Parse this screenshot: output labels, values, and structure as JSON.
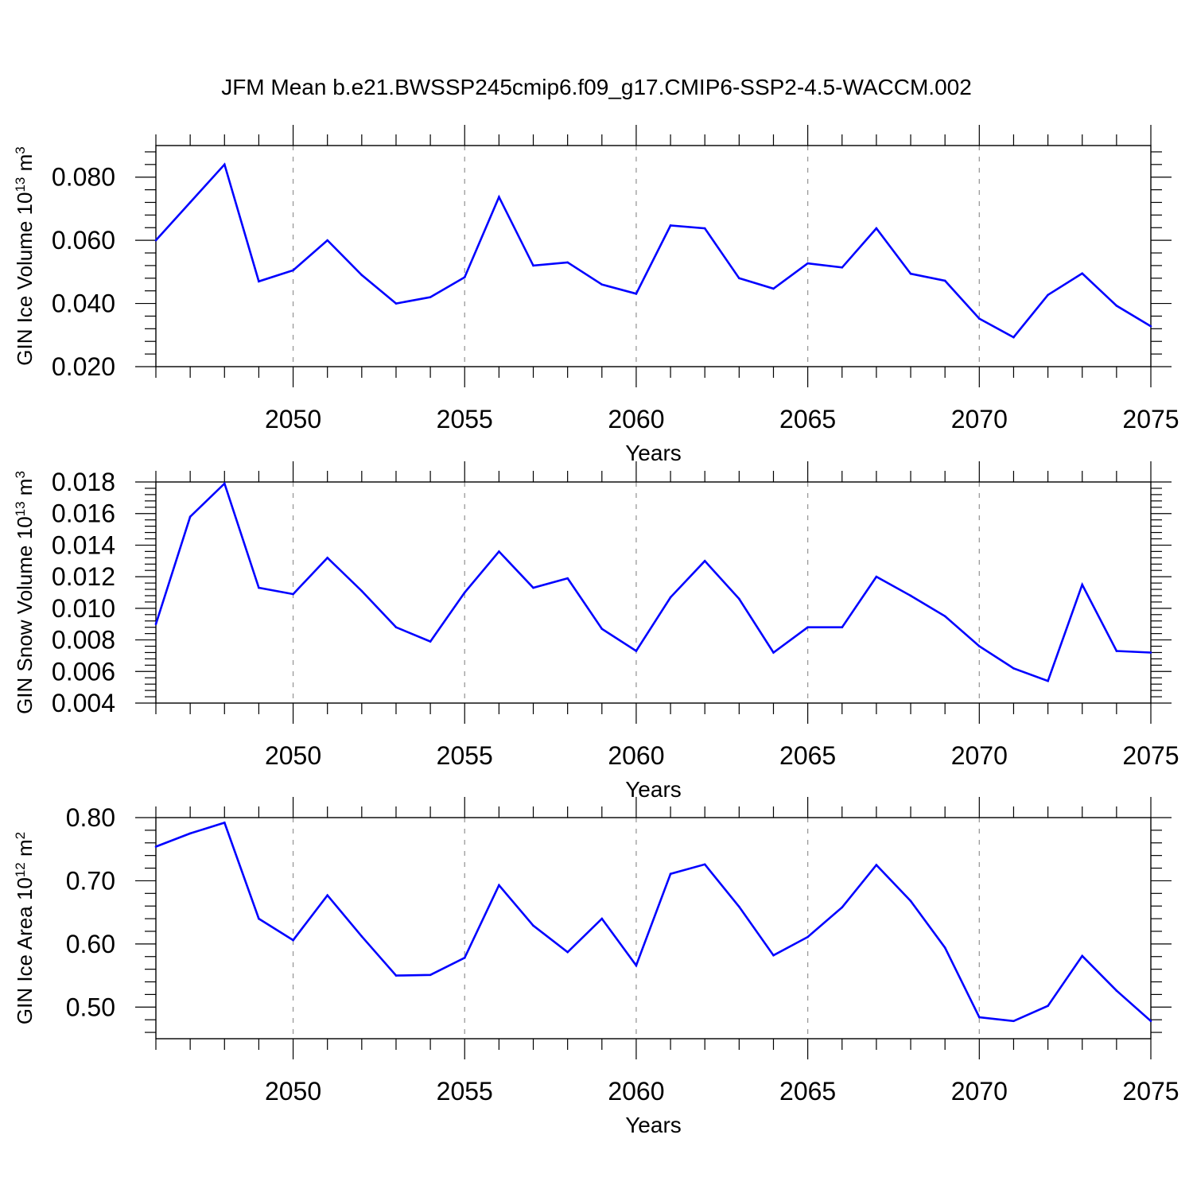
{
  "title": "JFM Mean b.e21.BWSSP245cmip6.f09_g17.CMIP6-SSP2-4.5-WACCM.002",
  "line_color": "#0000ff",
  "chart_data": [
    {
      "type": "line",
      "xlabel": "Years",
      "ylabel_main": "GIN Ice Volume 10",
      "ylabel_sup": "13",
      "ylabel_unit": " m",
      "ylabel_unit_sup": "3",
      "xlim": [
        2046,
        2075
      ],
      "ylim": [
        0.02,
        0.09
      ],
      "xticks": [
        "2050",
        "2055",
        "2060",
        "2065",
        "2070",
        "2075"
      ],
      "yticks": [
        "0.020",
        "0.040",
        "0.060",
        "0.080"
      ],
      "x_grid": "dashed at major ticks",
      "x": [
        2046,
        2047,
        2048,
        2049,
        2050,
        2051,
        2052,
        2053,
        2054,
        2055,
        2056,
        2057,
        2058,
        2059,
        2060,
        2061,
        2062,
        2063,
        2064,
        2065,
        2066,
        2067,
        2068,
        2069,
        2070,
        2071,
        2072,
        2073,
        2074,
        2075
      ],
      "values": [
        0.06,
        0.072,
        0.084,
        0.047,
        0.0505,
        0.06,
        0.049,
        0.04,
        0.042,
        0.0483,
        0.0737,
        0.052,
        0.053,
        0.046,
        0.0431,
        0.0647,
        0.0638,
        0.048,
        0.0447,
        0.0527,
        0.0514,
        0.0638,
        0.0494,
        0.0472,
        0.0352,
        0.0293,
        0.0427,
        0.0495,
        0.0393,
        0.0328
      ]
    },
    {
      "type": "line",
      "xlabel": "Years",
      "ylabel_main": "GIN Snow Volume 10",
      "ylabel_sup": "13",
      "ylabel_unit": " m",
      "ylabel_unit_sup": "3",
      "xlim": [
        2046,
        2075
      ],
      "ylim": [
        0.004,
        0.018
      ],
      "xticks": [
        "2050",
        "2055",
        "2060",
        "2065",
        "2070",
        "2075"
      ],
      "yticks": [
        "0.004",
        "0.006",
        "0.008",
        "0.010",
        "0.012",
        "0.014",
        "0.016",
        "0.018"
      ],
      "x_grid": "dashed at major ticks",
      "x": [
        2046,
        2047,
        2048,
        2049,
        2050,
        2051,
        2052,
        2053,
        2054,
        2055,
        2056,
        2057,
        2058,
        2059,
        2060,
        2061,
        2062,
        2063,
        2064,
        2065,
        2066,
        2067,
        2068,
        2069,
        2070,
        2071,
        2072,
        2073,
        2074,
        2075
      ],
      "values": [
        0.009,
        0.0158,
        0.0179,
        0.0113,
        0.0109,
        0.0132,
        0.0111,
        0.0088,
        0.0079,
        0.011,
        0.0136,
        0.0113,
        0.0119,
        0.0087,
        0.0073,
        0.0107,
        0.013,
        0.0106,
        0.0072,
        0.0088,
        0.0088,
        0.012,
        0.0108,
        0.0095,
        0.0076,
        0.0062,
        0.0054,
        0.0115,
        0.0073,
        0.0072
      ]
    },
    {
      "type": "line",
      "xlabel": "Years",
      "ylabel_main": "GIN Ice Area 10",
      "ylabel_sup": "12",
      "ylabel_unit": " m",
      "ylabel_unit_sup": "2",
      "xlim": [
        2046,
        2075
      ],
      "ylim": [
        0.45,
        0.8
      ],
      "xticks": [
        "2050",
        "2055",
        "2060",
        "2065",
        "2070",
        "2075"
      ],
      "yticks": [
        "0.50",
        "0.60",
        "0.70",
        "0.80"
      ],
      "x_grid": "dashed at major ticks",
      "x": [
        2046,
        2047,
        2048,
        2049,
        2050,
        2051,
        2052,
        2053,
        2054,
        2055,
        2056,
        2057,
        2058,
        2059,
        2060,
        2061,
        2062,
        2063,
        2064,
        2065,
        2066,
        2067,
        2068,
        2069,
        2070,
        2071,
        2072,
        2073,
        2074,
        2075
      ],
      "values": [
        0.754,
        0.775,
        0.792,
        0.64,
        0.606,
        0.677,
        0.612,
        0.55,
        0.551,
        0.578,
        0.693,
        0.629,
        0.587,
        0.64,
        0.566,
        0.711,
        0.726,
        0.659,
        0.582,
        0.611,
        0.658,
        0.725,
        0.668,
        0.594,
        0.484,
        0.478,
        0.502,
        0.581,
        0.526,
        0.478
      ]
    }
  ]
}
